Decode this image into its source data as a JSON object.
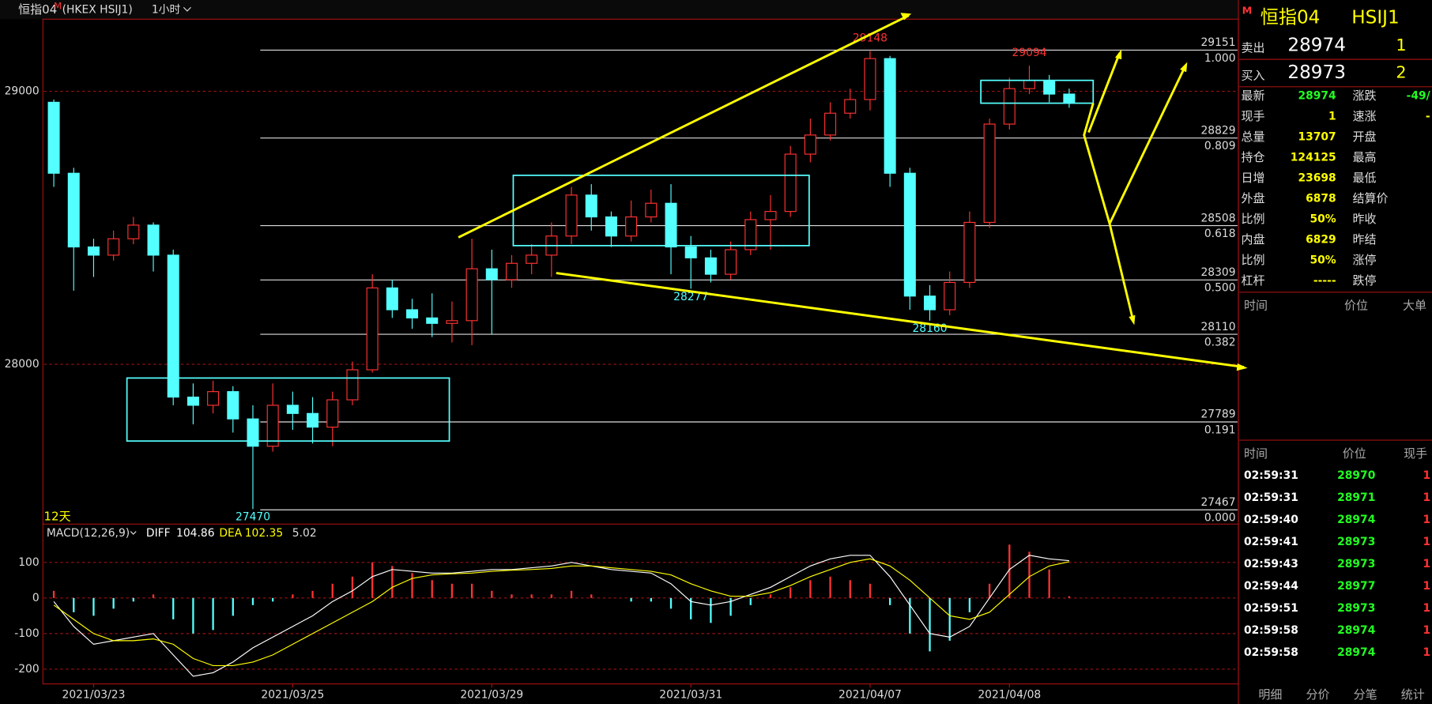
{
  "header": {
    "title": "恒指04",
    "badge": "M",
    "symbol": "(HKEX HSIJ1)",
    "period": "1小时"
  },
  "chart_data": [
    {
      "type": "candlestick",
      "categories": [
        null,
        null,
        "2021/03/23",
        null,
        null,
        null,
        null,
        null,
        null,
        null,
        null,
        null,
        "2021/03/25",
        null,
        null,
        null,
        null,
        null,
        null,
        null,
        null,
        null,
        "2021/03/29",
        null,
        null,
        null,
        null,
        null,
        null,
        null,
        null,
        null,
        "2021/03/31",
        null,
        null,
        null,
        null,
        null,
        null,
        null,
        null,
        "2021/04/07",
        null,
        null,
        null,
        null,
        null,
        null,
        "2021/04/08",
        null,
        null,
        null
      ],
      "open": [
        28960,
        28700,
        28430,
        28400,
        28460,
        28510,
        28400,
        27880,
        27850,
        27900,
        27800,
        27700,
        27850,
        27820,
        27770,
        27870,
        27980,
        28280,
        28200,
        28170,
        28150,
        28160,
        28350,
        28310,
        28370,
        28400,
        28470,
        28620,
        28540,
        28470,
        28540,
        28590,
        28430,
        28390,
        28330,
        28420,
        28530,
        28560,
        28770,
        28840,
        28920,
        28970,
        29120,
        28700,
        28250,
        28200,
        28300,
        28520,
        28880,
        29010,
        29040,
        28990
      ],
      "high": [
        28970,
        28720,
        28460,
        28490,
        28540,
        28520,
        28420,
        27930,
        27940,
        27920,
        27850,
        27930,
        27900,
        27880,
        27900,
        28010,
        28330,
        28310,
        28240,
        28260,
        28230,
        28460,
        28420,
        28400,
        28440,
        28520,
        28650,
        28660,
        28560,
        28600,
        28640,
        28660,
        28470,
        28420,
        28450,
        28560,
        28620,
        28800,
        28900,
        28960,
        29010,
        29148,
        29130,
        28720,
        28290,
        28340,
        28560,
        28900,
        29050,
        29094,
        29060,
        29010
      ],
      "low": [
        28650,
        28270,
        28320,
        28380,
        28440,
        28340,
        27850,
        27780,
        27820,
        27750,
        27470,
        27680,
        27760,
        27710,
        27700,
        27850,
        27970,
        28170,
        28130,
        28100,
        28080,
        28070,
        28110,
        28280,
        28330,
        28320,
        28440,
        28490,
        28430,
        28450,
        28520,
        28330,
        28277,
        28300,
        28310,
        28400,
        28420,
        28540,
        28740,
        28820,
        28900,
        28930,
        28650,
        28200,
        28160,
        28180,
        28280,
        28500,
        28860,
        28990,
        28960,
        28940
      ],
      "close": [
        28700,
        28430,
        28400,
        28460,
        28510,
        28400,
        27880,
        27850,
        27900,
        27800,
        27700,
        27850,
        27820,
        27770,
        27870,
        27980,
        28280,
        28200,
        28170,
        28150,
        28160,
        28350,
        28310,
        28370,
        28400,
        28470,
        28620,
        28540,
        28470,
        28540,
        28590,
        28430,
        28390,
        28330,
        28420,
        28530,
        28560,
        28770,
        28840,
        28920,
        28970,
        29120,
        28700,
        28250,
        28200,
        28300,
        28520,
        28880,
        29010,
        29040,
        28990,
        28960
      ],
      "up_color": "#ff3232",
      "down_color": "#54ffff",
      "ylim": [
        27418,
        29261
      ],
      "yticks": [
        28000,
        29000
      ],
      "grid": true,
      "annotations": [
        29148,
        29094,
        28277,
        28160,
        27470
      ],
      "fib_levels": [
        {
          "value": 29151,
          "label": "1.000"
        },
        {
          "value": 28829,
          "label": "0.809"
        },
        {
          "value": 28508,
          "label": "0.618"
        },
        {
          "value": 28309,
          "label": "0.500"
        },
        {
          "value": 28110,
          "label": "0.382"
        },
        {
          "value": 27789,
          "label": "0.191"
        },
        {
          "value": 27467,
          "label": "0.000"
        }
      ],
      "period_label": "12天"
    },
    {
      "type": "macd",
      "title": "MACD(12,26,9)",
      "histogram": {
        "values": [
          20,
          -40,
          -50,
          -30,
          -10,
          10,
          -60,
          -100,
          -90,
          -50,
          -20,
          -10,
          10,
          20,
          40,
          60,
          100,
          90,
          70,
          50,
          40,
          40,
          20,
          10,
          10,
          10,
          20,
          10,
          0,
          -10,
          -10,
          -30,
          -60,
          -70,
          -50,
          -20,
          10,
          30,
          50,
          60,
          50,
          40,
          -20,
          -100,
          -150,
          -120,
          -40,
          40,
          150,
          130,
          80,
          5
        ],
        "last": 5.02,
        "up_color": "#ff3232",
        "down_color": "#54ffff"
      },
      "series": [
        {
          "name": "DIFF",
          "color": "#ffffff",
          "last": 104.86,
          "values": [
            -10,
            -80,
            -130,
            -120,
            -110,
            -100,
            -160,
            -220,
            -210,
            -180,
            -140,
            -110,
            -80,
            -50,
            -10,
            20,
            60,
            80,
            75,
            70,
            70,
            75,
            80,
            80,
            85,
            90,
            100,
            90,
            80,
            75,
            70,
            40,
            -10,
            -20,
            -10,
            10,
            30,
            60,
            90,
            110,
            120,
            120,
            60,
            -20,
            -100,
            -110,
            -80,
            0,
            80,
            120,
            110,
            105
          ]
        },
        {
          "name": "DEA",
          "color": "#ffff00",
          "last": 102.35,
          "values": [
            -20,
            -60,
            -100,
            -120,
            -120,
            -115,
            -130,
            -170,
            -190,
            -190,
            -180,
            -160,
            -130,
            -100,
            -70,
            -40,
            -10,
            30,
            55,
            65,
            68,
            70,
            75,
            78,
            80,
            83,
            90,
            90,
            85,
            80,
            75,
            65,
            40,
            20,
            5,
            5,
            15,
            35,
            60,
            80,
            100,
            110,
            90,
            50,
            0,
            -50,
            -60,
            -40,
            10,
            60,
            90,
            102
          ]
        }
      ],
      "ylim": [
        -244,
        205
      ],
      "yticks": [
        -200,
        -100,
        0,
        100
      ],
      "grid": true
    }
  ],
  "quote": {
    "name": "恒指04",
    "code": "HSIJ1",
    "ask": {
      "label": "卖出",
      "price": 28974,
      "size": 1
    },
    "bid": {
      "label": "买入",
      "price": 28973,
      "size": 2
    },
    "stats": [
      {
        "label": "最新",
        "value": 28974
      },
      {
        "label": "涨跌",
        "value": "-49/"
      },
      {
        "label": "现手",
        "value": 1
      },
      {
        "label": "速涨",
        "value": "-"
      },
      {
        "label": "总量",
        "value": 13707
      },
      {
        "label": "开盘"
      },
      {
        "label": "持仓",
        "value": 124125
      },
      {
        "label": "最高"
      },
      {
        "label": "日增",
        "value": 23698
      },
      {
        "label": "最低"
      },
      {
        "label": "外盘",
        "value": 6878
      },
      {
        "label": "结算价"
      },
      {
        "label": "比例",
        "value": "50%"
      },
      {
        "label": "昨收"
      },
      {
        "label": "内盘",
        "value": 6829
      },
      {
        "label": "昨结"
      },
      {
        "label": "比例",
        "value": "50%"
      },
      {
        "label": "涨停"
      },
      {
        "label": "杠杆",
        "value": "-----"
      },
      {
        "label": "跌停"
      }
    ]
  },
  "big_orders": {
    "headers": [
      "时间",
      "价位",
      "大单"
    ]
  },
  "trades": {
    "headers": [
      "时间",
      "价位",
      "现手"
    ],
    "rows": [
      [
        "02:59:31",
        28970,
        1
      ],
      [
        "02:59:31",
        28971,
        1
      ],
      [
        "02:59:40",
        28974,
        1
      ],
      [
        "02:59:41",
        28973,
        1
      ],
      [
        "02:59:43",
        28973,
        1
      ],
      [
        "02:59:44",
        28977,
        1
      ],
      [
        "02:59:51",
        28973,
        1
      ],
      [
        "02:59:58",
        28974,
        1
      ],
      [
        "02:59:58",
        28974,
        1
      ]
    ]
  },
  "tabs": [
    "明细",
    "分价",
    "分笔",
    "统计"
  ]
}
